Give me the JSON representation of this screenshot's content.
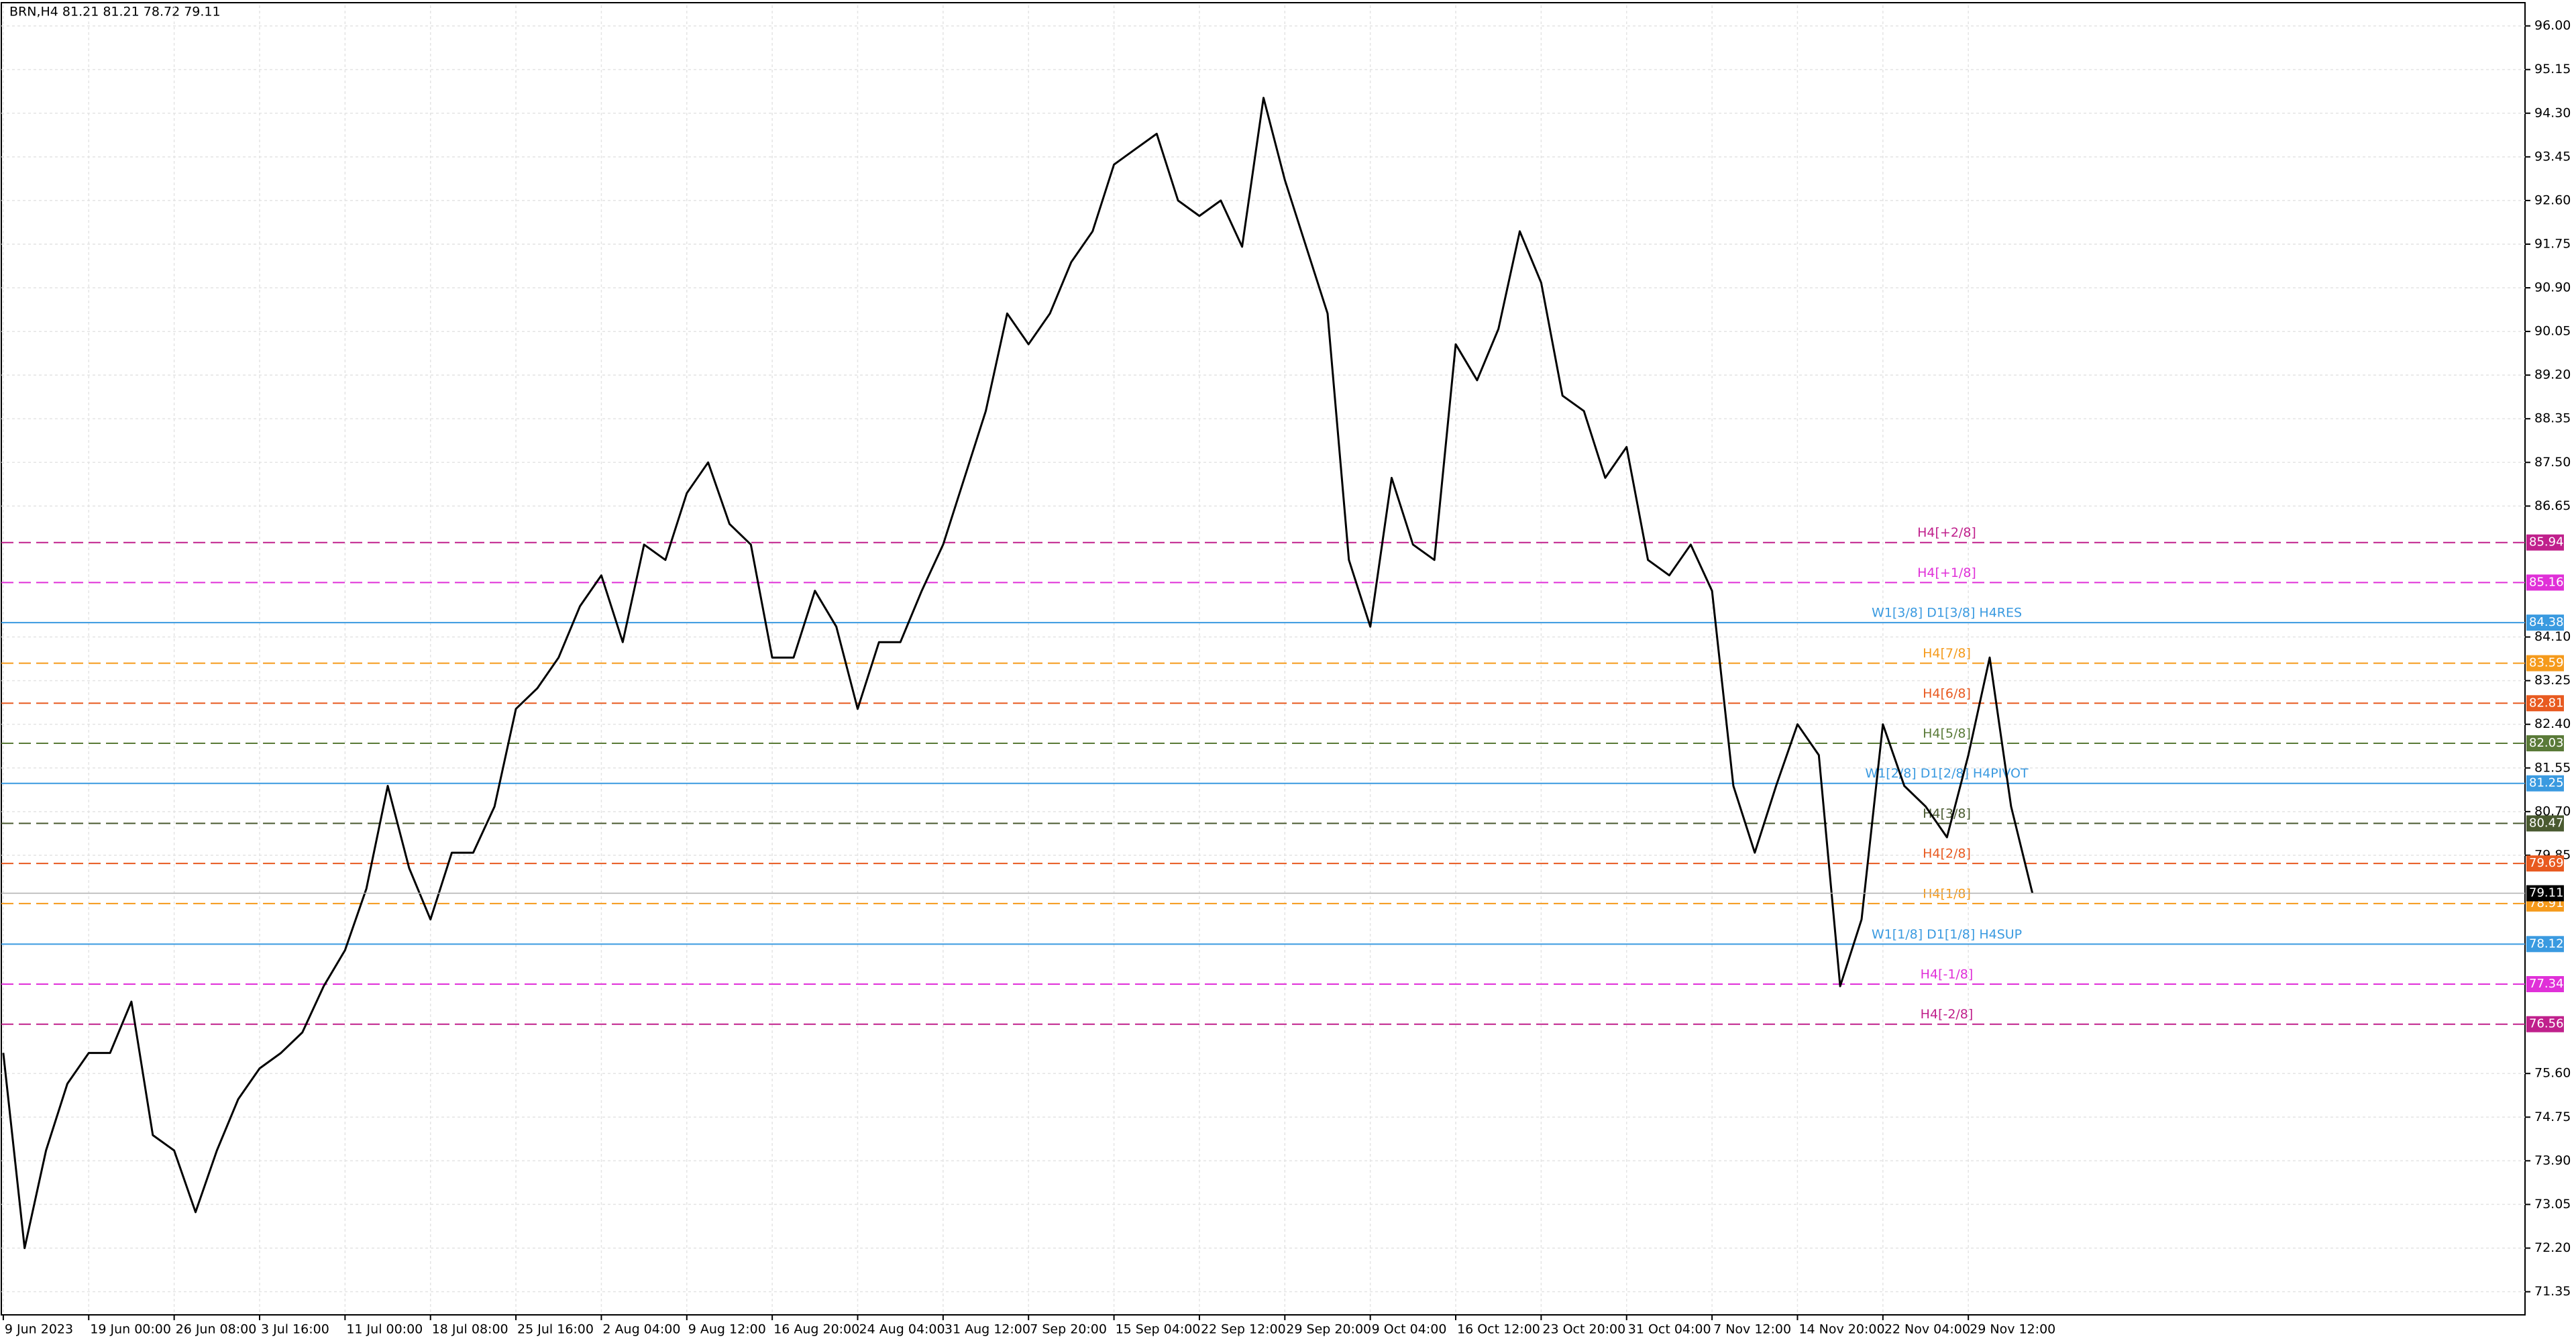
{
  "chart_data": {
    "type": "line",
    "title": "BRN,H4  81.21 81.21 78.72 79.11",
    "categories": [
      "9 Jun 2023",
      null,
      null,
      null,
      "19 Jun 00:00",
      null,
      null,
      null,
      "26 Jun 08:00",
      null,
      null,
      null,
      "3 Jul 16:00",
      null,
      null,
      null,
      "11 Jul 00:00",
      null,
      null,
      null,
      "18 Jul 08:00",
      null,
      null,
      null,
      "25 Jul 16:00",
      null,
      null,
      null,
      "2 Aug 04:00",
      null,
      null,
      null,
      "9 Aug 12:00",
      null,
      null,
      null,
      "16 Aug 20:00",
      null,
      null,
      null,
      "24 Aug 04:00",
      null,
      null,
      null,
      "31 Aug 12:00",
      null,
      null,
      null,
      "7 Sep 20:00",
      null,
      null,
      null,
      "15 Sep 04:00",
      null,
      null,
      null,
      "22 Sep 12:00",
      null,
      null,
      null,
      "29 Sep 20:00",
      null,
      null,
      null,
      "9 Oct 04:00",
      null,
      null,
      null,
      "16 Oct 12:00",
      null,
      null,
      null,
      "23 Oct 20:00",
      null,
      null,
      null,
      "31 Oct 04:00",
      null,
      null,
      null,
      "7 Nov 12:00",
      null,
      null,
      null,
      "14 Nov 20:00",
      null,
      null,
      null,
      "22 Nov 04:00",
      null,
      null,
      null,
      "29 Nov 12:00",
      null,
      null,
      null
    ],
    "series": [
      {
        "name": "BRN",
        "color": "#000000",
        "values": [
          76.0,
          72.2,
          74.1,
          75.4,
          76.0,
          76.0,
          77.0,
          74.4,
          74.1,
          72.9,
          74.1,
          75.1,
          75.7,
          76.0,
          76.4,
          77.3,
          78.0,
          79.2,
          81.2,
          79.6,
          78.6,
          79.9,
          79.9,
          80.8,
          82.7,
          83.1,
          83.7,
          84.7,
          85.3,
          84.0,
          85.9,
          85.6,
          86.9,
          87.5,
          86.3,
          85.9,
          83.7,
          83.7,
          85.0,
          84.3,
          82.7,
          84.0,
          84.0,
          85.0,
          85.9,
          87.2,
          88.5,
          90.4,
          89.8,
          90.4,
          91.4,
          92.0,
          93.3,
          93.6,
          93.9,
          92.6,
          92.3,
          92.6,
          91.7,
          94.6,
          93.0,
          91.7,
          90.4,
          85.6,
          84.3,
          87.2,
          85.9,
          85.6,
          89.8,
          89.1,
          90.1,
          92.0,
          91.0,
          88.8,
          88.5,
          87.2,
          87.8,
          85.6,
          85.3,
          85.9,
          85.0,
          81.2,
          79.9,
          81.2,
          82.4,
          81.8,
          77.3,
          78.6,
          82.4,
          81.2,
          80.8,
          80.2,
          81.8,
          83.7,
          80.8,
          79.11
        ]
      }
    ],
    "ylim": [
      70.9,
      96.4
    ],
    "yticks": [
      {
        "value": 96,
        "label": "96.00"
      },
      95.15,
      {
        "value": 94.3,
        "label": "94.30"
      },
      93.45,
      {
        "value": 92.6,
        "label": "92.60"
      },
      91.75,
      {
        "value": 90.9,
        "label": "90.90"
      },
      90.05,
      {
        "value": 89.2,
        "label": "89.20"
      },
      88.35,
      {
        "value": 87.5,
        "label": "87.50"
      },
      86.65,
      {
        "value": 84.1,
        "label": "84.10"
      },
      83.25,
      {
        "value": 82.4,
        "label": "82.40"
      },
      81.55,
      {
        "value": 80.7,
        "label": "80.70"
      },
      79.85,
      {
        "value": 75.6,
        "label": "75.60"
      },
      74.75,
      {
        "value": 73.9,
        "label": "73.90"
      },
      73.05,
      {
        "value": 72.2,
        "label": "72.20"
      },
      71.35
    ],
    "grid": true,
    "levels": [
      {
        "name": "H4[+2/8]",
        "value": 85.94,
        "color": "#c0208c",
        "dashed": true
      },
      {
        "name": "H4[+1/8]",
        "value": 85.16,
        "color": "#e030d8",
        "dashed": true
      },
      {
        "name": "W1[3/8] D1[3/8] H4RES",
        "value": 84.38,
        "color": "#3a9ae0",
        "dashed": false
      },
      {
        "name": "H4[7/8]",
        "value": 83.59,
        "color": "#f59a1b",
        "dashed": true
      },
      {
        "name": "H4[6/8]",
        "value": 82.81,
        "color": "#e85a20",
        "dashed": true
      },
      {
        "name": "H4[5/8]",
        "value": 82.03,
        "color": "#5a7a38",
        "dashed": true
      },
      {
        "name": "W1[2/8] D1[2/8] H4PIVOT",
        "value": 81.25,
        "color": "#3a9ae0",
        "dashed": false
      },
      {
        "name": "H4[3/8]",
        "value": 80.47,
        "color": "#4a5a30",
        "dashed": true
      },
      {
        "name": "H4[2/8]",
        "value": 79.69,
        "color": "#e85a20",
        "dashed": true
      },
      {
        "name": "H4[1/8]",
        "value": 78.91,
        "color": "#f59a1b",
        "dashed": true
      },
      {
        "name": "W1[1/8] D1[1/8] H4SUP",
        "value": 78.12,
        "color": "#3a9ae0",
        "dashed": false
      },
      {
        "name": "H4[-1/8]",
        "value": 77.34,
        "color": "#e030d8",
        "dashed": true
      },
      {
        "name": "H4[-2/8]",
        "value": 76.56,
        "color": "#c0208c",
        "dashed": true
      }
    ],
    "last_price": {
      "value": 79.11,
      "color": "#000000"
    }
  }
}
